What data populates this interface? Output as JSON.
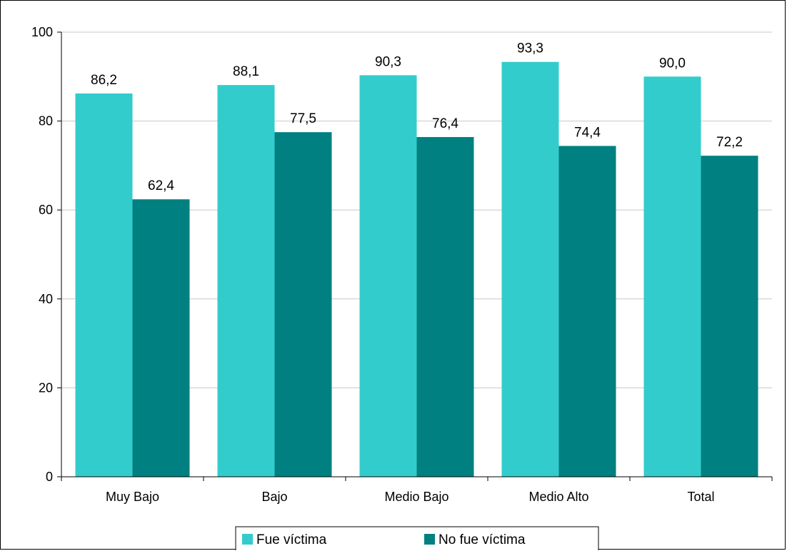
{
  "chart_data": {
    "type": "bar",
    "categories": [
      "Muy Bajo",
      "Bajo",
      "Medio Bajo",
      "Medio Alto",
      "Total"
    ],
    "series": [
      {
        "name": "Fue víctima",
        "values": [
          86.2,
          88.1,
          90.3,
          93.3,
          90.0
        ],
        "labels": [
          "86,2",
          "88,1",
          "90,3",
          "93,3",
          "90,0"
        ],
        "color": "#33CCCC"
      },
      {
        "name": "No fue víctima",
        "values": [
          62.4,
          77.5,
          76.4,
          74.4,
          72.2
        ],
        "labels": [
          "62,4",
          "77,5",
          "76,4",
          "74,4",
          "72,2"
        ],
        "color": "#008080"
      }
    ],
    "yticks": [
      "0",
      "20",
      "40",
      "60",
      "80",
      "100"
    ],
    "ylim": [
      0,
      100
    ],
    "grid": true,
    "legend_position": "bottom",
    "title": "",
    "xlabel": "",
    "ylabel": ""
  }
}
